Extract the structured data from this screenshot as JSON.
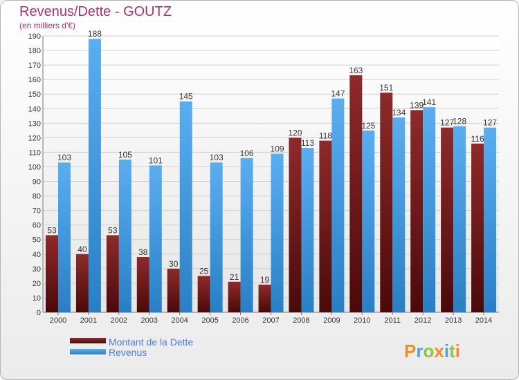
{
  "chart_data": {
    "type": "bar",
    "title": "Revenus/Dette - GOUTZ",
    "subtitle": "(en milliers d'€)",
    "categories": [
      "2000",
      "2001",
      "2002",
      "2003",
      "2004",
      "2005",
      "2006",
      "2007",
      "2008",
      "2009",
      "2010",
      "2011",
      "2012",
      "2013",
      "2014"
    ],
    "series": [
      {
        "name": "Montant de la Dette",
        "color": "#7a1c1c",
        "values": [
          53,
          40,
          53,
          38,
          30,
          25,
          21,
          19,
          120,
          118,
          163,
          151,
          139,
          127,
          116
        ]
      },
      {
        "name": "Revenus",
        "color": "#3d9be0",
        "values": [
          103,
          188,
          105,
          101,
          145,
          103,
          106,
          109,
          113,
          147,
          125,
          134,
          141,
          128,
          127
        ]
      }
    ],
    "ylim": [
      0,
      190
    ],
    "ytick_step": 10,
    "grid": true,
    "legend_position": "bottom-left"
  },
  "logo": {
    "text": "Proxiti",
    "colors": [
      "#f28c28",
      "#4aa3df",
      "#8dc63f"
    ]
  }
}
